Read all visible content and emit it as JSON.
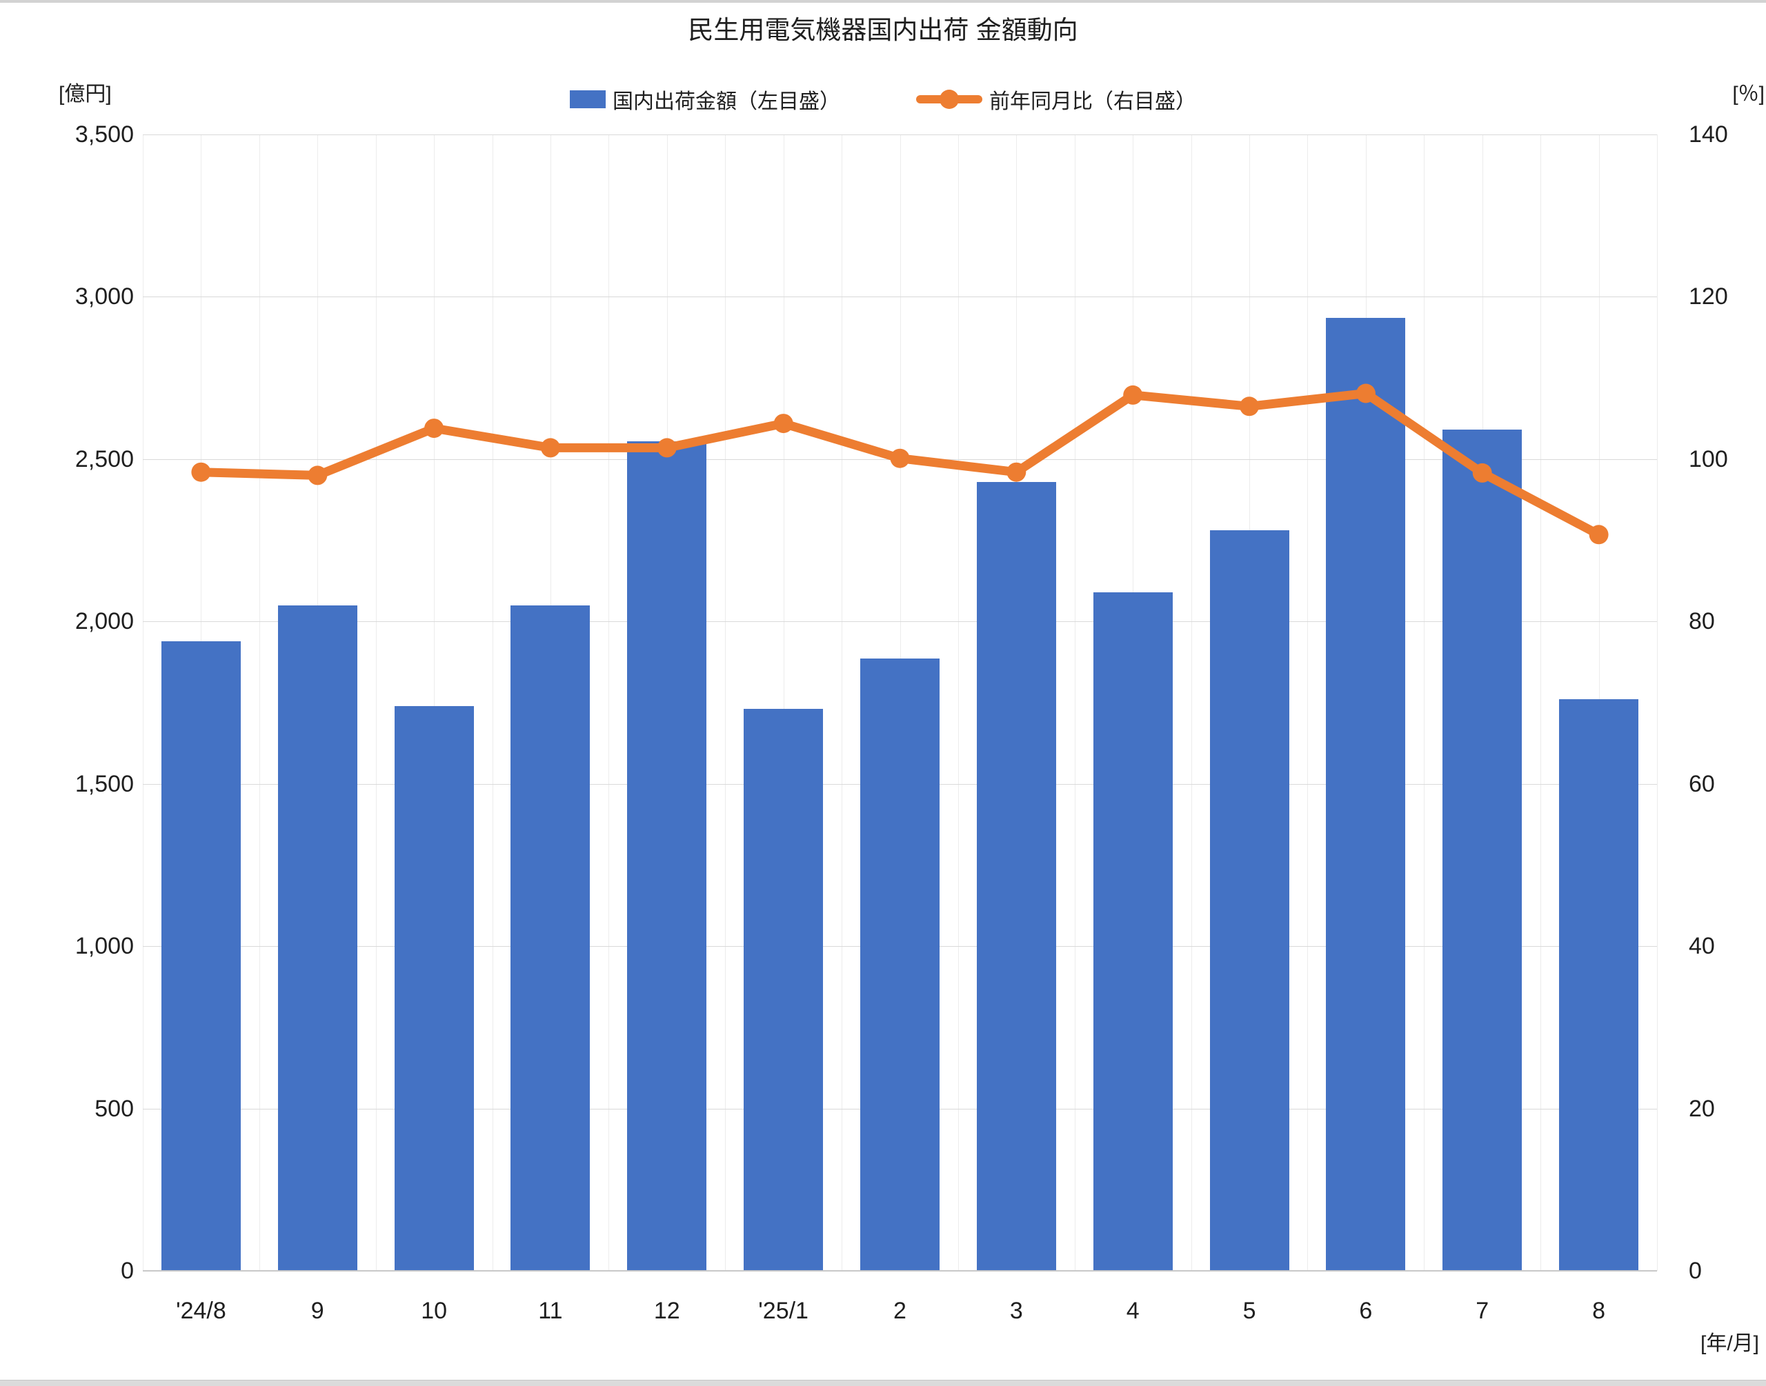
{
  "chart": {
    "title": "民生用電気機器国内出荷 金額動向",
    "legend": {
      "bar_label": "国内出荷金額（左目盛）",
      "line_label": "前年同月比（右目盛）"
    },
    "left_axis": {
      "unit": "[億円]",
      "ticks": [
        "3,500",
        "3,000",
        "2,500",
        "2,000",
        "1,500",
        "1,000",
        "500",
        "0"
      ]
    },
    "right_axis": {
      "unit": "[％]",
      "ticks": [
        "140",
        "120",
        "100",
        "80",
        "60",
        "40",
        "20",
        "0"
      ]
    },
    "x_axis": {
      "unit": "[年/月]"
    }
  },
  "chart_data": {
    "type": "bar+line",
    "title": "民生用電気機器国内出荷 金額動向",
    "categories": [
      "'24/8",
      "9",
      "10",
      "11",
      "12",
      "'25/1",
      "2",
      "3",
      "4",
      "5",
      "6",
      "7",
      "8"
    ],
    "series": [
      {
        "name": "国内出荷金額（左目盛）",
        "type": "bar",
        "axis": "left",
        "unit": "億円",
        "color": "#4472C4",
        "values": [
          1940,
          2050,
          1740,
          2050,
          2555,
          1730,
          1885,
          2430,
          2090,
          2280,
          2935,
          2590,
          1760
        ]
      },
      {
        "name": "前年同月比（右目盛）",
        "type": "line",
        "axis": "right",
        "unit": "%",
        "color": "#ED7D31",
        "values": [
          98.4,
          98.0,
          103.8,
          101.4,
          101.4,
          104.4,
          100.1,
          98.4,
          107.9,
          106.5,
          108.1,
          98.3,
          90.7
        ]
      }
    ],
    "left_ylim": [
      0,
      3500
    ],
    "left_step": 500,
    "right_ylim": [
      0,
      140
    ],
    "right_step": 20,
    "grid": true,
    "legend_position": "top"
  }
}
